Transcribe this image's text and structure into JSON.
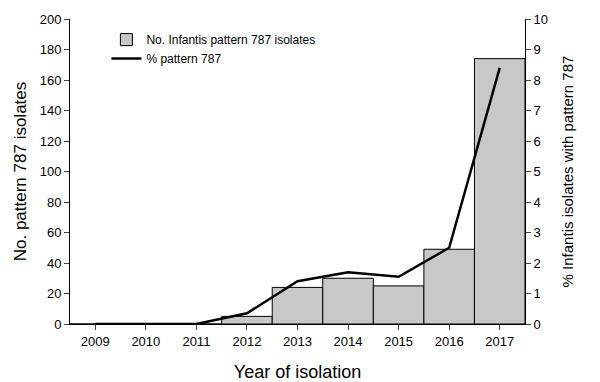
{
  "chart_data": {
    "type": "bar",
    "x_label": "Year of isolation",
    "y_label": "No. pattern 787 isolates",
    "y2_label": "% Infantis isolates with pattern 787",
    "categories": [
      "2009",
      "2010",
      "2011",
      "2012",
      "2013",
      "2014",
      "2015",
      "2016",
      "2017"
    ],
    "series": [
      {
        "name": "No. Infantis pattern 787 isolates",
        "type": "bar",
        "color": "#c8c8c8",
        "values": [
          0,
          0,
          0,
          5,
          24,
          30,
          25,
          49,
          174
        ]
      },
      {
        "name": "% pattern 787",
        "type": "line",
        "color": "#000000",
        "axis": "y2",
        "values": [
          0,
          0,
          0,
          0.35,
          1.4,
          1.7,
          1.55,
          2.5,
          8.4
        ]
      }
    ],
    "ylim": [
      0,
      200
    ],
    "yticks": [
      0,
      20,
      40,
      60,
      80,
      100,
      120,
      140,
      160,
      180,
      200
    ],
    "y2lim": [
      0,
      10
    ],
    "y2ticks": [
      0,
      1,
      2,
      3,
      4,
      5,
      6,
      7,
      8,
      9,
      10
    ],
    "grid": false,
    "legend": "upper left"
  }
}
